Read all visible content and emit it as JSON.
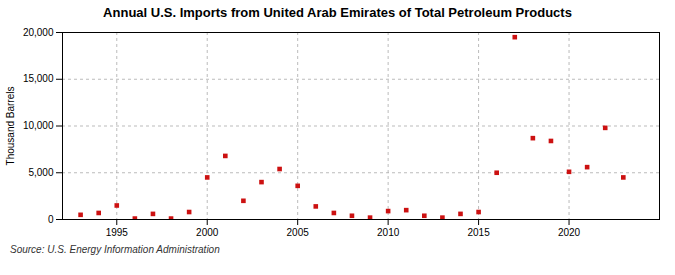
{
  "chart_data": {
    "type": "scatter",
    "title": "Annual U.S. Imports from United Arab Emirates of Total Petroleum Products",
    "ylabel": "Thousand Barrels",
    "source": "Source: U.S. Energy Information Administration",
    "x": [
      1993,
      1994,
      1995,
      1996,
      1997,
      1998,
      1999,
      2000,
      2001,
      2002,
      2003,
      2004,
      2005,
      2006,
      2007,
      2008,
      2009,
      2010,
      2011,
      2012,
      2013,
      2014,
      2015,
      2016,
      2017,
      2018,
      2019,
      2020,
      2021,
      2022,
      2023
    ],
    "values": [
      500,
      700,
      1500,
      100,
      600,
      100,
      800,
      4500,
      6800,
      2000,
      4000,
      5400,
      3600,
      1400,
      700,
      400,
      200,
      900,
      1000,
      400,
      200,
      600,
      800,
      5000,
      19500,
      8700,
      8400,
      5100,
      5600,
      9800,
      4500
    ],
    "color": "#cc1111",
    "marker": "square",
    "grid": true,
    "xlim": [
      1992,
      2025
    ],
    "xticks": [
      1995,
      2000,
      2005,
      2010,
      2015,
      2020
    ],
    "ylim": [
      0,
      20000
    ],
    "yticks": [
      0,
      {
        "value": 5000,
        "label": "5,000"
      },
      {
        "value": 10000,
        "label": "10,000"
      },
      {
        "value": 15000,
        "label": "15,000"
      },
      {
        "value": 20000,
        "label": "20,000"
      }
    ]
  }
}
